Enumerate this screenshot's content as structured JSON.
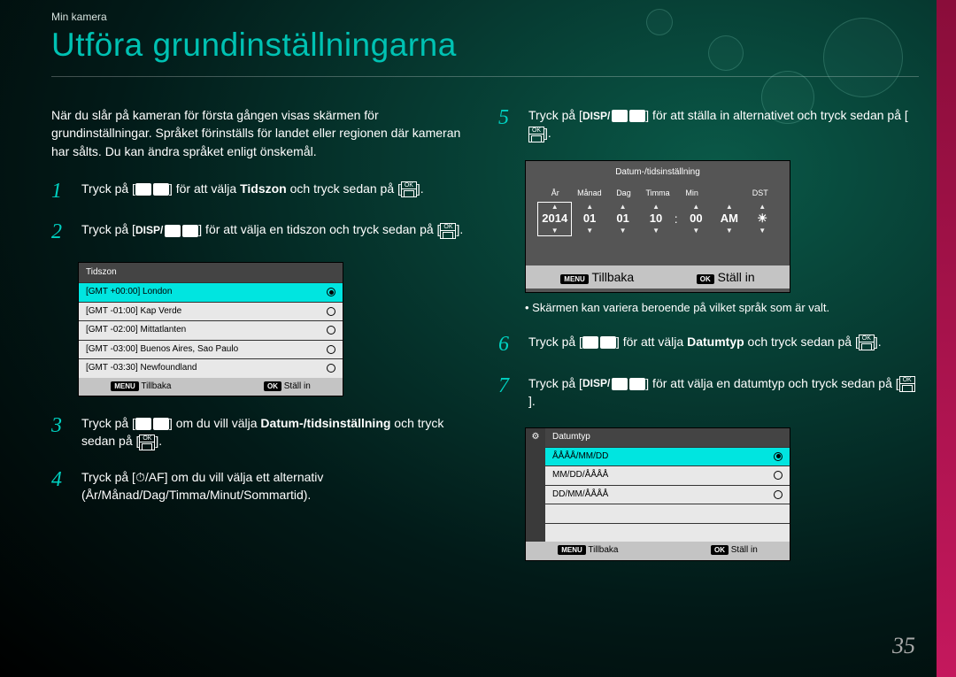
{
  "breadcrumb": "Min kamera",
  "title": "Utföra grundinställningarna",
  "intro": "När du slår på kameran för första gången visas skärmen för grundinställningar. Språket förinställs för landet eller regionen där kameran har sålts. Du kan ändra språket enligt önskemål.",
  "page_number": "35",
  "steps": {
    "s1": {
      "num": "1",
      "p1": "Tryck på [",
      "p2": "] för att välja ",
      "bold": "Tidszon",
      "p3": " och tryck sedan på [",
      "p4": "]."
    },
    "s2": {
      "num": "2",
      "p1": "Tryck på [",
      "p2": "] för att välja en tidszon och tryck sedan på [",
      "p3": "]."
    },
    "s3": {
      "num": "3",
      "p1": "Tryck på [",
      "p2": "] om du vill välja ",
      "bold": "Datum-/tidsinställning",
      "p3": " och tryck sedan på [",
      "p4": "]."
    },
    "s4": {
      "num": "4",
      "p1": "Tryck på [",
      "p2": "] om du vill välja ett alternativ (År/Månad/Dag/Timma/Minut/Sommartid)."
    },
    "s5": {
      "num": "5",
      "p1": "Tryck på [",
      "p2": "] för att ställa in alternativet och tryck sedan på [",
      "p3": "]."
    },
    "s6": {
      "num": "6",
      "p1": "Tryck på [",
      "p2": "] för att välja ",
      "bold": "Datumtyp",
      "p3": " och tryck sedan på [",
      "p4": "]."
    },
    "s7": {
      "num": "7",
      "p1": "Tryck på [",
      "p2": "] för att välja en datumtyp och tryck sedan på [",
      "p3": "]."
    }
  },
  "tz_panel": {
    "title": "Tidszon",
    "rows": [
      {
        "label": "[GMT +00:00] London",
        "selected": true
      },
      {
        "label": "[GMT -01:00] Kap Verde",
        "selected": false
      },
      {
        "label": "[GMT -02:00] Mittatlanten",
        "selected": false
      },
      {
        "label": "[GMT -03:00] Buenos Aires, Sao Paulo",
        "selected": false
      },
      {
        "label": "[GMT -03:30] Newfoundland",
        "selected": false
      }
    ],
    "footer_back_key": "MENU",
    "footer_back": "Tillbaka",
    "footer_ok_key": "OK",
    "footer_ok": "Ställ in"
  },
  "dt_panel": {
    "title": "Datum-/tidsinställning",
    "labels": [
      "År",
      "Månad",
      "Dag",
      "Timma",
      "Min",
      "",
      "DST"
    ],
    "values": [
      "2014",
      "01",
      "01",
      "10",
      "00",
      "AM",
      "☀"
    ],
    "colon": ":",
    "footer_back_key": "MENU",
    "footer_back": "Tillbaka",
    "footer_ok_key": "OK",
    "footer_ok": "Ställ in"
  },
  "note": "• Skärmen kan variera beroende på vilket språk som är valt.",
  "dtype_panel": {
    "title": "Datumtyp",
    "rows": [
      {
        "label": "ÅÅÅÅ/MM/DD",
        "selected": true
      },
      {
        "label": "MM/DD/ÅÅÅÅ",
        "selected": false
      },
      {
        "label": "DD/MM/ÅÅÅÅ",
        "selected": false
      }
    ],
    "footer_back_key": "MENU",
    "footer_back": "Tillbaka",
    "footer_ok_key": "OK",
    "footer_ok": "Ställ in"
  }
}
